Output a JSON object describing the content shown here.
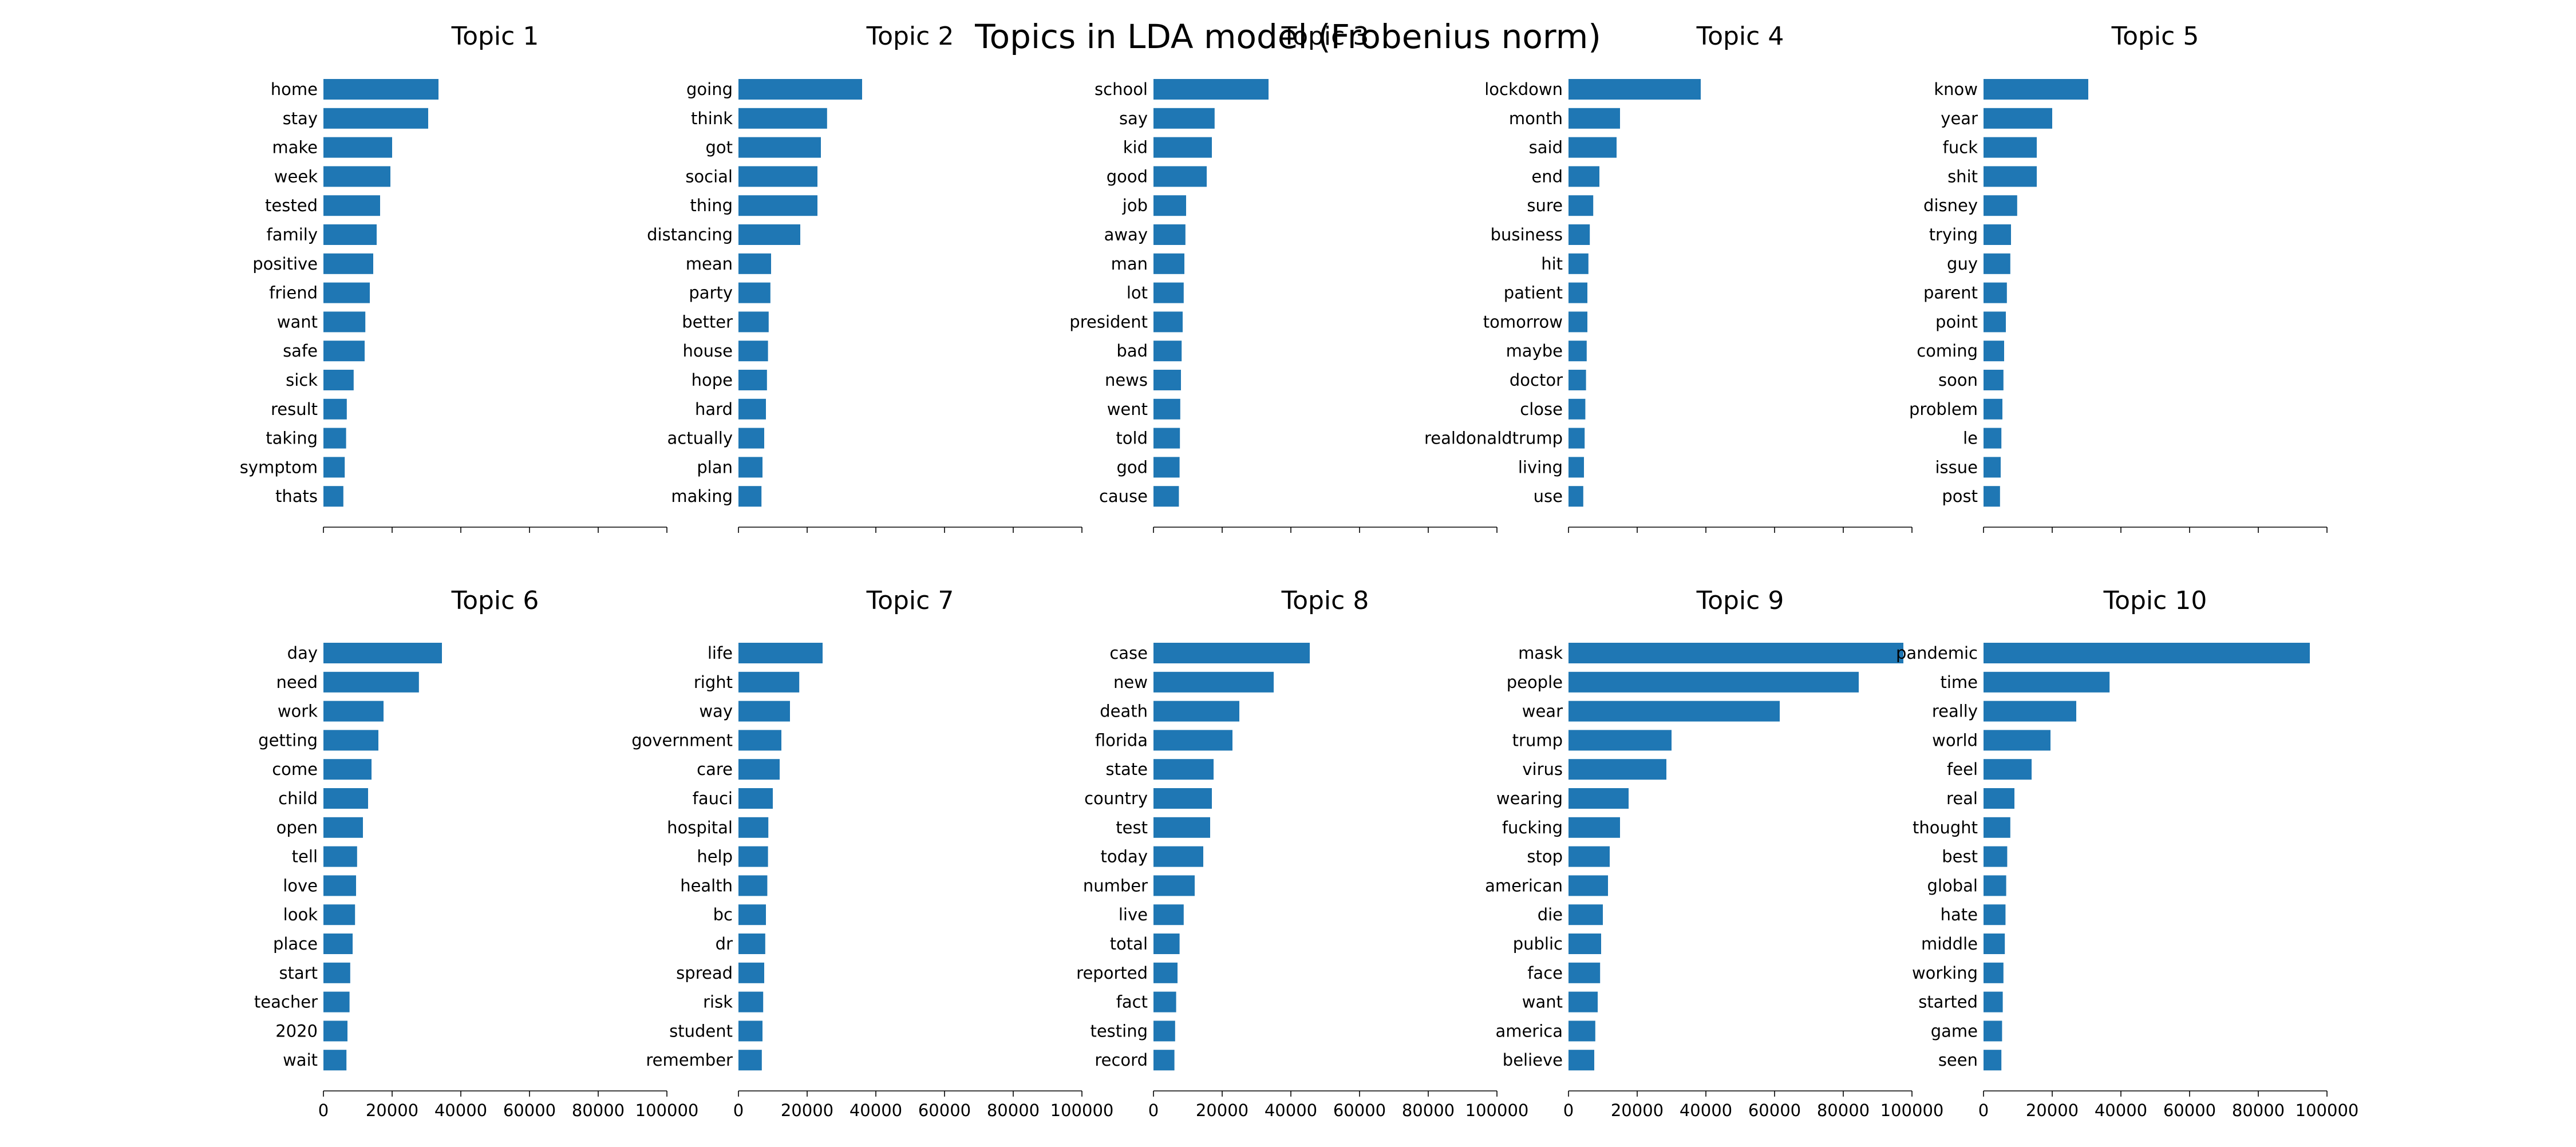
{
  "figure": {
    "title": "Topics in LDA model (Frobenius norm)"
  },
  "chart_data": {
    "type": "bar",
    "orientation": "horizontal",
    "xlim": [
      0,
      100000
    ],
    "xticks": [
      0,
      20000,
      40000,
      60000,
      80000,
      100000
    ],
    "tick_labels_shown_on_bottom_row_only": true,
    "bar_color": "#1f77b4",
    "panels": [
      {
        "title": "Topic 1",
        "categories": [
          "home",
          "stay",
          "make",
          "week",
          "tested",
          "family",
          "positive",
          "friend",
          "want",
          "safe",
          "sick",
          "result",
          "taking",
          "symptom",
          "thats"
        ],
        "values": [
          33500,
          30500,
          20000,
          19500,
          16500,
          15500,
          14500,
          13500,
          12200,
          12000,
          8800,
          6800,
          6600,
          6200,
          5800
        ]
      },
      {
        "title": "Topic 2",
        "categories": [
          "going",
          "think",
          "got",
          "social",
          "thing",
          "distancing",
          "mean",
          "party",
          "better",
          "house",
          "hope",
          "hard",
          "actually",
          "plan",
          "making"
        ],
        "values": [
          36000,
          25800,
          24000,
          23000,
          23000,
          18000,
          9500,
          9300,
          8800,
          8600,
          8300,
          8000,
          7500,
          7000,
          6700
        ]
      },
      {
        "title": "Topic 3",
        "categories": [
          "school",
          "say",
          "kid",
          "good",
          "job",
          "away",
          "man",
          "lot",
          "president",
          "bad",
          "news",
          "went",
          "told",
          "god",
          "cause"
        ],
        "values": [
          33500,
          17800,
          17000,
          15500,
          9500,
          9300,
          9000,
          8800,
          8500,
          8200,
          8000,
          7800,
          7700,
          7600,
          7400
        ]
      },
      {
        "title": "Topic 4",
        "categories": [
          "lockdown",
          "month",
          "said",
          "end",
          "sure",
          "business",
          "hit",
          "patient",
          "tomorrow",
          "maybe",
          "doctor",
          "close",
          "realdonaldtrump",
          "living",
          "use"
        ],
        "values": [
          38500,
          15000,
          14000,
          9000,
          7200,
          6200,
          5800,
          5500,
          5500,
          5300,
          5100,
          4900,
          4700,
          4500,
          4300
        ]
      },
      {
        "title": "Topic 5",
        "categories": [
          "know",
          "year",
          "fuck",
          "shit",
          "disney",
          "trying",
          "guy",
          "parent",
          "point",
          "coming",
          "soon",
          "problem",
          "le",
          "issue",
          "post"
        ],
        "values": [
          30500,
          20000,
          15500,
          15500,
          9800,
          8000,
          7800,
          6800,
          6500,
          6000,
          5800,
          5500,
          5200,
          5000,
          4800
        ]
      },
      {
        "title": "Topic 6",
        "categories": [
          "day",
          "need",
          "work",
          "getting",
          "come",
          "child",
          "open",
          "tell",
          "love",
          "look",
          "place",
          "start",
          "teacher",
          "2020",
          "wait"
        ],
        "values": [
          34500,
          27800,
          17500,
          16000,
          14000,
          13000,
          11500,
          9800,
          9500,
          9200,
          8500,
          7800,
          7600,
          7000,
          6700
        ]
      },
      {
        "title": "Topic 7",
        "categories": [
          "life",
          "right",
          "way",
          "government",
          "care",
          "fauci",
          "hospital",
          "help",
          "health",
          "bc",
          "dr",
          "spread",
          "risk",
          "student",
          "remember"
        ],
        "values": [
          24500,
          17700,
          15000,
          12500,
          12000,
          10000,
          8700,
          8600,
          8400,
          8000,
          7800,
          7500,
          7200,
          7000,
          6800
        ]
      },
      {
        "title": "Topic 8",
        "categories": [
          "case",
          "new",
          "death",
          "florida",
          "state",
          "country",
          "test",
          "today",
          "number",
          "live",
          "total",
          "reported",
          "fact",
          "testing",
          "record"
        ],
        "values": [
          45500,
          35000,
          25000,
          23000,
          17500,
          17000,
          16500,
          14500,
          12000,
          8800,
          7600,
          7000,
          6600,
          6300,
          6100
        ]
      },
      {
        "title": "Topic 9",
        "categories": [
          "mask",
          "people",
          "wear",
          "trump",
          "virus",
          "wearing",
          "fucking",
          "stop",
          "american",
          "die",
          "public",
          "face",
          "want",
          "america",
          "believe"
        ],
        "values": [
          97500,
          84500,
          61500,
          30000,
          28500,
          17500,
          15000,
          12000,
          11500,
          10000,
          9500,
          9200,
          8500,
          7800,
          7500
        ]
      },
      {
        "title": "Topic 10",
        "categories": [
          "pandemic",
          "time",
          "really",
          "world",
          "feel",
          "real",
          "thought",
          "best",
          "global",
          "hate",
          "middle",
          "working",
          "started",
          "game",
          "seen"
        ],
        "values": [
          95000,
          36700,
          27000,
          19500,
          14000,
          9000,
          7800,
          6900,
          6600,
          6400,
          6200,
          5800,
          5600,
          5400,
          5200
        ]
      }
    ]
  }
}
